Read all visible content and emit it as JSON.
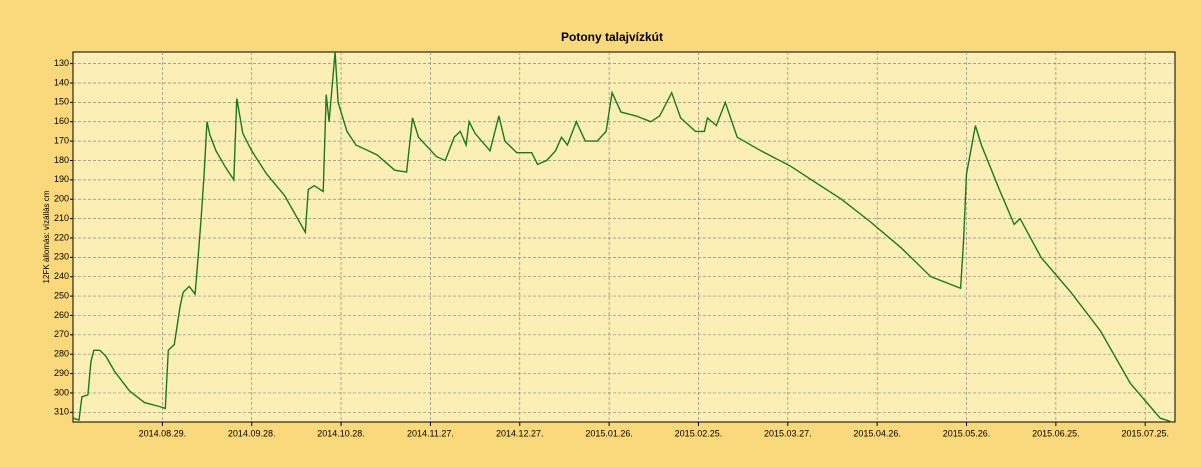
{
  "chart_data": {
    "type": "line",
    "title": "Potony talajvízkút",
    "y_label": "12FK állomás: vízállás cm",
    "x": [
      "2014.07.30.",
      "2014.08.01.",
      "2014.08.02.",
      "2014.08.04.",
      "2014.08.05.",
      "2014.08.06.",
      "2014.08.08.",
      "2014.08.10.",
      "2014.08.13.",
      "2014.08.18.",
      "2014.08.23.",
      "2014.08.28.",
      "2014.08.30.",
      "2014.08.31.",
      "2014.09.02.",
      "2014.09.04.",
      "2014.09.05.",
      "2014.09.07.",
      "2014.09.09.",
      "2014.09.10.",
      "2014.09.11.",
      "2014.09.12.",
      "2014.09.13.",
      "2014.09.14.",
      "2014.09.16.",
      "2014.09.19.",
      "2014.09.22.",
      "2014.09.23.",
      "2014.09.25.",
      "2014.09.28.",
      "2014.10.03.",
      "2014.10.09.",
      "2014.10.16.",
      "2014.10.17.",
      "2014.10.19.",
      "2014.10.22.",
      "2014.10.23.",
      "2014.10.24.",
      "2014.10.26.",
      "2014.10.27.",
      "2014.10.30.",
      "2014.11.02.",
      "2014.11.09.",
      "2014.11.15.",
      "2014.11.19.",
      "2014.11.21.",
      "2014.11.23.",
      "2014.11.29.",
      "2014.12.02.",
      "2014.12.05.",
      "2014.12.07.",
      "2014.12.09.",
      "2014.12.10.",
      "2014.12.12.",
      "2014.12.17.",
      "2014.12.20.",
      "2014.12.22.",
      "2014.12.26.",
      "2014.12.31.",
      "2015.01.02.",
      "2015.01.05.",
      "2015.01.08.",
      "2015.01.10.",
      "2015.01.12.",
      "2015.01.15.",
      "2015.01.18.",
      "2015.01.22.",
      "2015.01.25.",
      "2015.01.27.",
      "2015.01.30.",
      "2015.02.04.",
      "2015.02.09.",
      "2015.02.12.",
      "2015.02.16.",
      "2015.02.19.",
      "2015.02.24.",
      "2015.02.27.",
      "2015.02.28.",
      "2015.03.03.",
      "2015.03.06.",
      "2015.03.10.",
      "2015.03.18.",
      "2015.03.28.",
      "2015.04.04.",
      "2015.04.14.",
      "2015.04.24.",
      "2015.05.04.",
      "2015.05.14.",
      "2015.05.24.",
      "2015.05.25.",
      "2015.05.26.",
      "2015.05.29.",
      "2015.05.31.",
      "2015.06.06.",
      "2015.06.11.",
      "2015.06.13.",
      "2015.06.20.",
      "2015.06.30.",
      "2015.07.10.",
      "2015.07.20.",
      "2015.07.30.",
      "2015.08.03."
    ],
    "series": [
      {
        "color": "#1a7a1a",
        "values": [
          313,
          314,
          302,
          301,
          284,
          278,
          278,
          281,
          289,
          299,
          305,
          307,
          308,
          278,
          275,
          255,
          248,
          245,
          249,
          230,
          210,
          188,
          160,
          167,
          175,
          183,
          190,
          148,
          166,
          175,
          187,
          198,
          217,
          195,
          193,
          196,
          146,
          160,
          124,
          150,
          165,
          172,
          177,
          185,
          186,
          158,
          168,
          178,
          180,
          168,
          165,
          172,
          160,
          166,
          175,
          157,
          170,
          176,
          176,
          182,
          180,
          175,
          168,
          172,
          160,
          170,
          170,
          165,
          145,
          155,
          157,
          160,
          157,
          145,
          158,
          165,
          165,
          158,
          162,
          150,
          168,
          175,
          183,
          190,
          200,
          212,
          225,
          240,
          246,
          222,
          187,
          162,
          172,
          195,
          213,
          210,
          230,
          248,
          268,
          295,
          313,
          315
        ]
      }
    ],
    "xlim": [
      "2014.07.30.",
      "2015.08.04."
    ],
    "xticks": [
      "2014.08.29.",
      "2014.09.28.",
      "2014.10.28.",
      "2014.11.27.",
      "2014.12.27.",
      "2015.01.26.",
      "2015.02.25.",
      "2015.03.27.",
      "2015.04.26.",
      "2015.05.26.",
      "2015.06.25.",
      "2015.07.25."
    ],
    "ylim": [
      124,
      315
    ],
    "y_reversed": true,
    "yticks": [
      130,
      140,
      150,
      160,
      170,
      180,
      190,
      200,
      210,
      220,
      230,
      240,
      250,
      260,
      270,
      280,
      290,
      300,
      310
    ],
    "grid": true
  }
}
